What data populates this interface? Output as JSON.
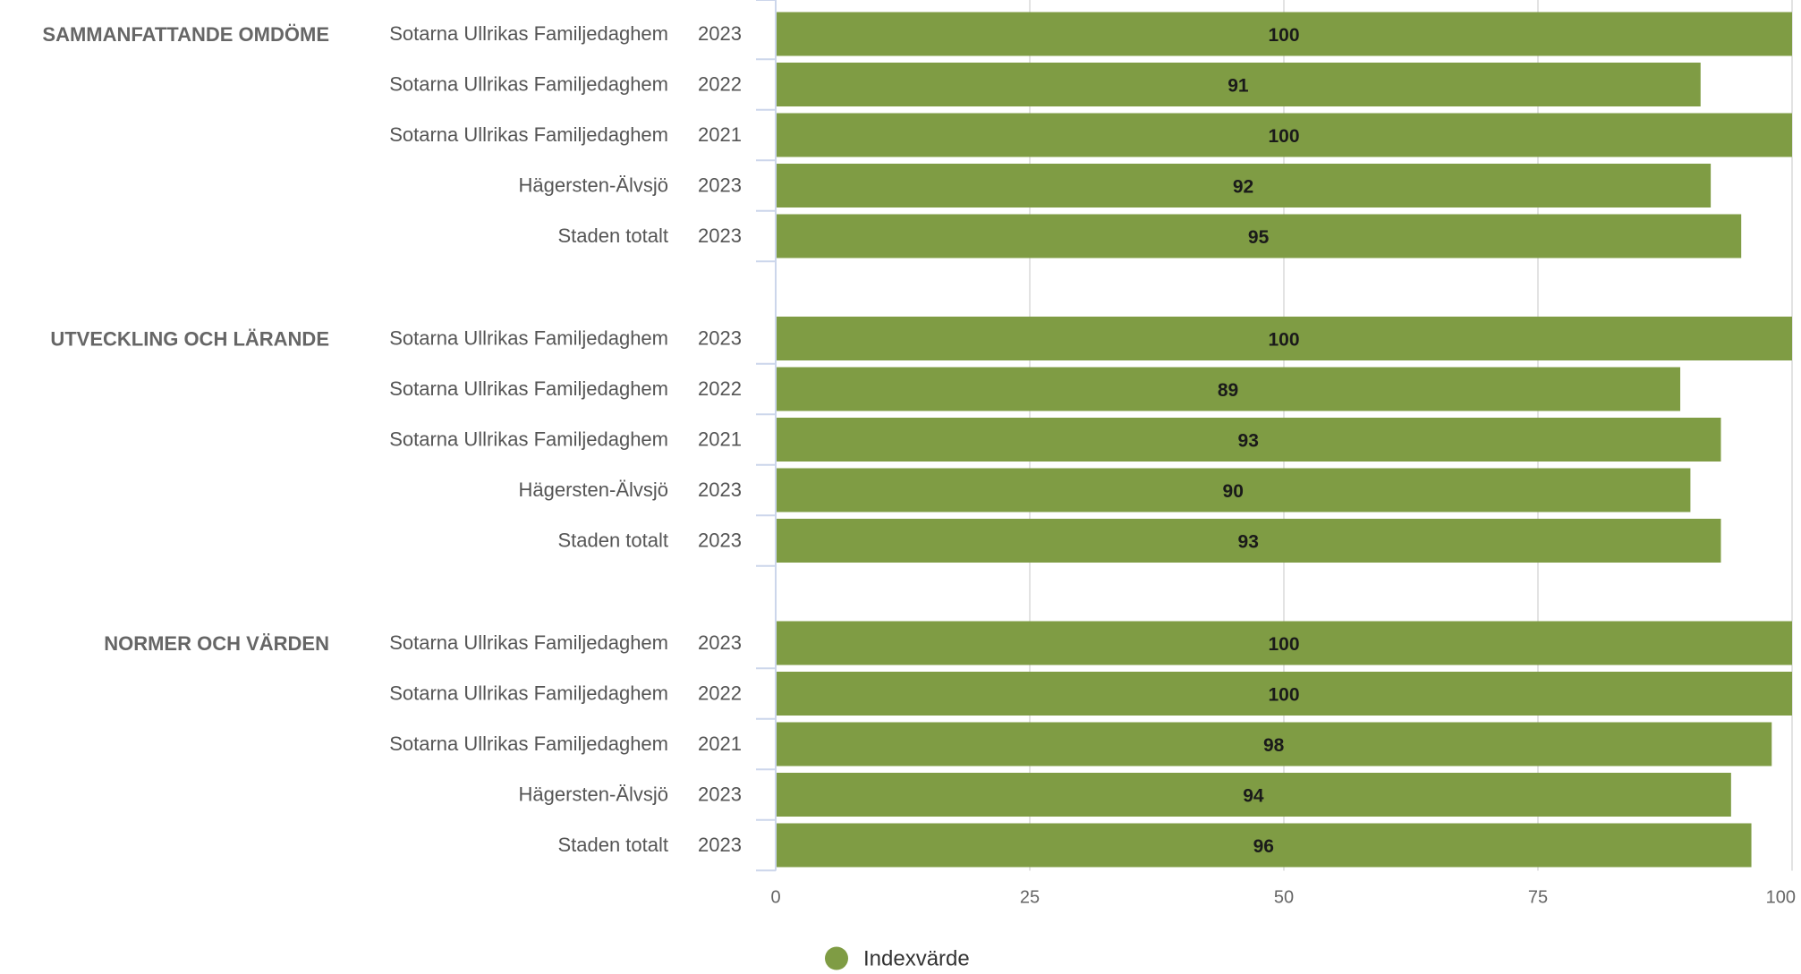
{
  "chart_data": {
    "type": "bar",
    "orientation": "horizontal",
    "xlim": [
      0,
      100
    ],
    "ticks": [
      "0",
      "25",
      "50",
      "75",
      "100"
    ],
    "grid": true,
    "legend_position": "bottom-center",
    "colors": {
      "bar": "#7f9c44",
      "grid": "#e3e3e3",
      "axis": "#ccd6eb"
    },
    "series": [
      {
        "name": "Indexvärde"
      }
    ],
    "groups": [
      {
        "label": "SAMMANFATTANDE OMDÖME",
        "rows": [
          {
            "entity": "Sotarna Ullrikas Familjedaghem",
            "year": "2023",
            "value": 100
          },
          {
            "entity": "Sotarna Ullrikas Familjedaghem",
            "year": "2022",
            "value": 91
          },
          {
            "entity": "Sotarna Ullrikas Familjedaghem",
            "year": "2021",
            "value": 100
          },
          {
            "entity": "Hägersten-Älvsjö",
            "year": "2023",
            "value": 92
          },
          {
            "entity": "Staden totalt",
            "year": "2023",
            "value": 95
          }
        ]
      },
      {
        "label": "UTVECKLING OCH LÄRANDE",
        "rows": [
          {
            "entity": "Sotarna Ullrikas Familjedaghem",
            "year": "2023",
            "value": 100
          },
          {
            "entity": "Sotarna Ullrikas Familjedaghem",
            "year": "2022",
            "value": 89
          },
          {
            "entity": "Sotarna Ullrikas Familjedaghem",
            "year": "2021",
            "value": 93
          },
          {
            "entity": "Hägersten-Älvsjö",
            "year": "2023",
            "value": 90
          },
          {
            "entity": "Staden totalt",
            "year": "2023",
            "value": 93
          }
        ]
      },
      {
        "label": "NORMER OCH VÄRDEN",
        "rows": [
          {
            "entity": "Sotarna Ullrikas Familjedaghem",
            "year": "2023",
            "value": 100
          },
          {
            "entity": "Sotarna Ullrikas Familjedaghem",
            "year": "2022",
            "value": 100
          },
          {
            "entity": "Sotarna Ullrikas Familjedaghem",
            "year": "2021",
            "value": 98
          },
          {
            "entity": "Hägersten-Älvsjö",
            "year": "2023",
            "value": 94
          },
          {
            "entity": "Staden totalt",
            "year": "2023",
            "value": 96
          }
        ]
      }
    ]
  }
}
